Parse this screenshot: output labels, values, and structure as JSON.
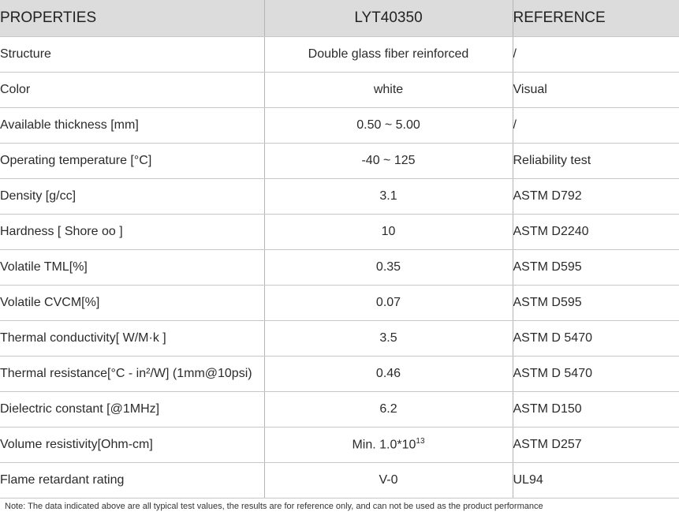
{
  "table": {
    "headers": [
      "PROPERTIES",
      "LYT40350",
      "REFERENCE"
    ],
    "rows": [
      {
        "property": "Structure",
        "value": "Double glass fiber reinforced",
        "reference": "/"
      },
      {
        "property": "Color",
        "value": "white",
        "reference": "Visual"
      },
      {
        "property": "Available thickness [mm]",
        "value": "0.50 ~ 5.00",
        "reference": "/"
      },
      {
        "property": "Operating temperature [°C]",
        "value": "-40 ~ 125",
        "reference": "Reliability test"
      },
      {
        "property": "Density [g/cc]",
        "value": "3.1",
        "reference": "ASTM D792"
      },
      {
        "property": "Hardness [ Shore oo ]",
        "value": "10",
        "reference": "ASTM D2240"
      },
      {
        "property": "Volatile TML[%]",
        "value": "0.35",
        "reference": "ASTM D595"
      },
      {
        "property": "Volatile CVCM[%]",
        "value": "0.07",
        "reference": "ASTM D595"
      },
      {
        "property": "Thermal conductivity[ W/M·k ]",
        "value": "3.5",
        "reference": "ASTM D 5470"
      },
      {
        "property": "Thermal resistance[°C - in²/W] (1mm@10psi)",
        "value": "0.46",
        "reference": "ASTM D 5470"
      },
      {
        "property": "Dielectric constant [@1MHz]",
        "value": "6.2",
        "reference": "ASTM D150"
      },
      {
        "property": "Volume resistivity[Ohm-cm]",
        "value": "Min. 1.0*10",
        "value_sup": "13",
        "reference": "ASTM D257"
      },
      {
        "property": "Flame retardant rating",
        "value": "V-0",
        "reference": "UL94"
      }
    ]
  },
  "note": "Note: The data indicated above are all typical test values, the results are for reference only, and can not be used as the product performance"
}
